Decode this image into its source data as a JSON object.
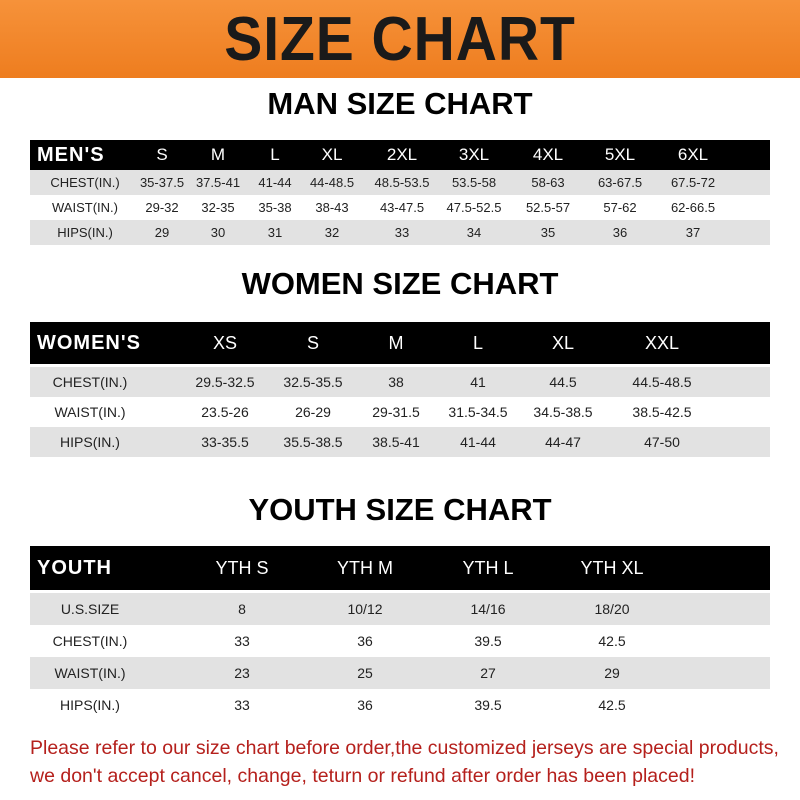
{
  "banner_title": "SIZE CHART",
  "men": {
    "title": "MAN SIZE CHART",
    "header": [
      "MEN'S",
      "S",
      "M",
      "L",
      "XL",
      "2XL",
      "3XL",
      "4XL",
      "5XL",
      "6XL"
    ],
    "rows": [
      [
        "CHEST(IN.)",
        "35-37.5",
        "37.5-41",
        "41-44",
        "44-48.5",
        "48.5-53.5",
        "53.5-58",
        "58-63",
        "63-67.5",
        "67.5-72"
      ],
      [
        "WAIST(IN.)",
        "29-32",
        "32-35",
        "35-38",
        "38-43",
        "43-47.5",
        "47.5-52.5",
        "52.5-57",
        "57-62",
        "62-66.5"
      ],
      [
        "HIPS(IN.)",
        "29",
        "30",
        "31",
        "32",
        "33",
        "34",
        "35",
        "36",
        "37"
      ]
    ]
  },
  "women": {
    "title": "WOMEN SIZE CHART",
    "header": [
      "WOMEN'S",
      "XS",
      "S",
      "M",
      "L",
      "XL",
      "XXL"
    ],
    "rows": [
      [
        "CHEST(IN.)",
        "29.5-32.5",
        "32.5-35.5",
        "38",
        "41",
        "44.5",
        "44.5-48.5"
      ],
      [
        "WAIST(IN.)",
        "23.5-26",
        "26-29",
        "29-31.5",
        "31.5-34.5",
        "34.5-38.5",
        "38.5-42.5"
      ],
      [
        "HIPS(IN.)",
        "33-35.5",
        "35.5-38.5",
        "38.5-41",
        "41-44",
        "44-47",
        "47-50"
      ]
    ]
  },
  "youth": {
    "title": "YOUTH SIZE CHART",
    "header": [
      "YOUTH",
      "YTH S",
      "YTH M",
      "YTH L",
      "YTH XL"
    ],
    "rows": [
      [
        "U.S.SIZE",
        "8",
        "10/12",
        "14/16",
        "18/20"
      ],
      [
        "CHEST(IN.)",
        "33",
        "36",
        "39.5",
        "42.5"
      ],
      [
        "WAIST(IN.)",
        "23",
        "25",
        "27",
        "29"
      ],
      [
        "HIPS(IN.)",
        "33",
        "36",
        "39.5",
        "42.5"
      ]
    ]
  },
  "notice": "Please refer to our size chart before order,the customized jerseys are special products, we don't accept cancel, change, teturn or refund after order has been placed!",
  "colors": {
    "banner": "#f08529",
    "header_row": "#000000",
    "alt_row": "#e2e2e2",
    "notice": "#b5201c"
  }
}
